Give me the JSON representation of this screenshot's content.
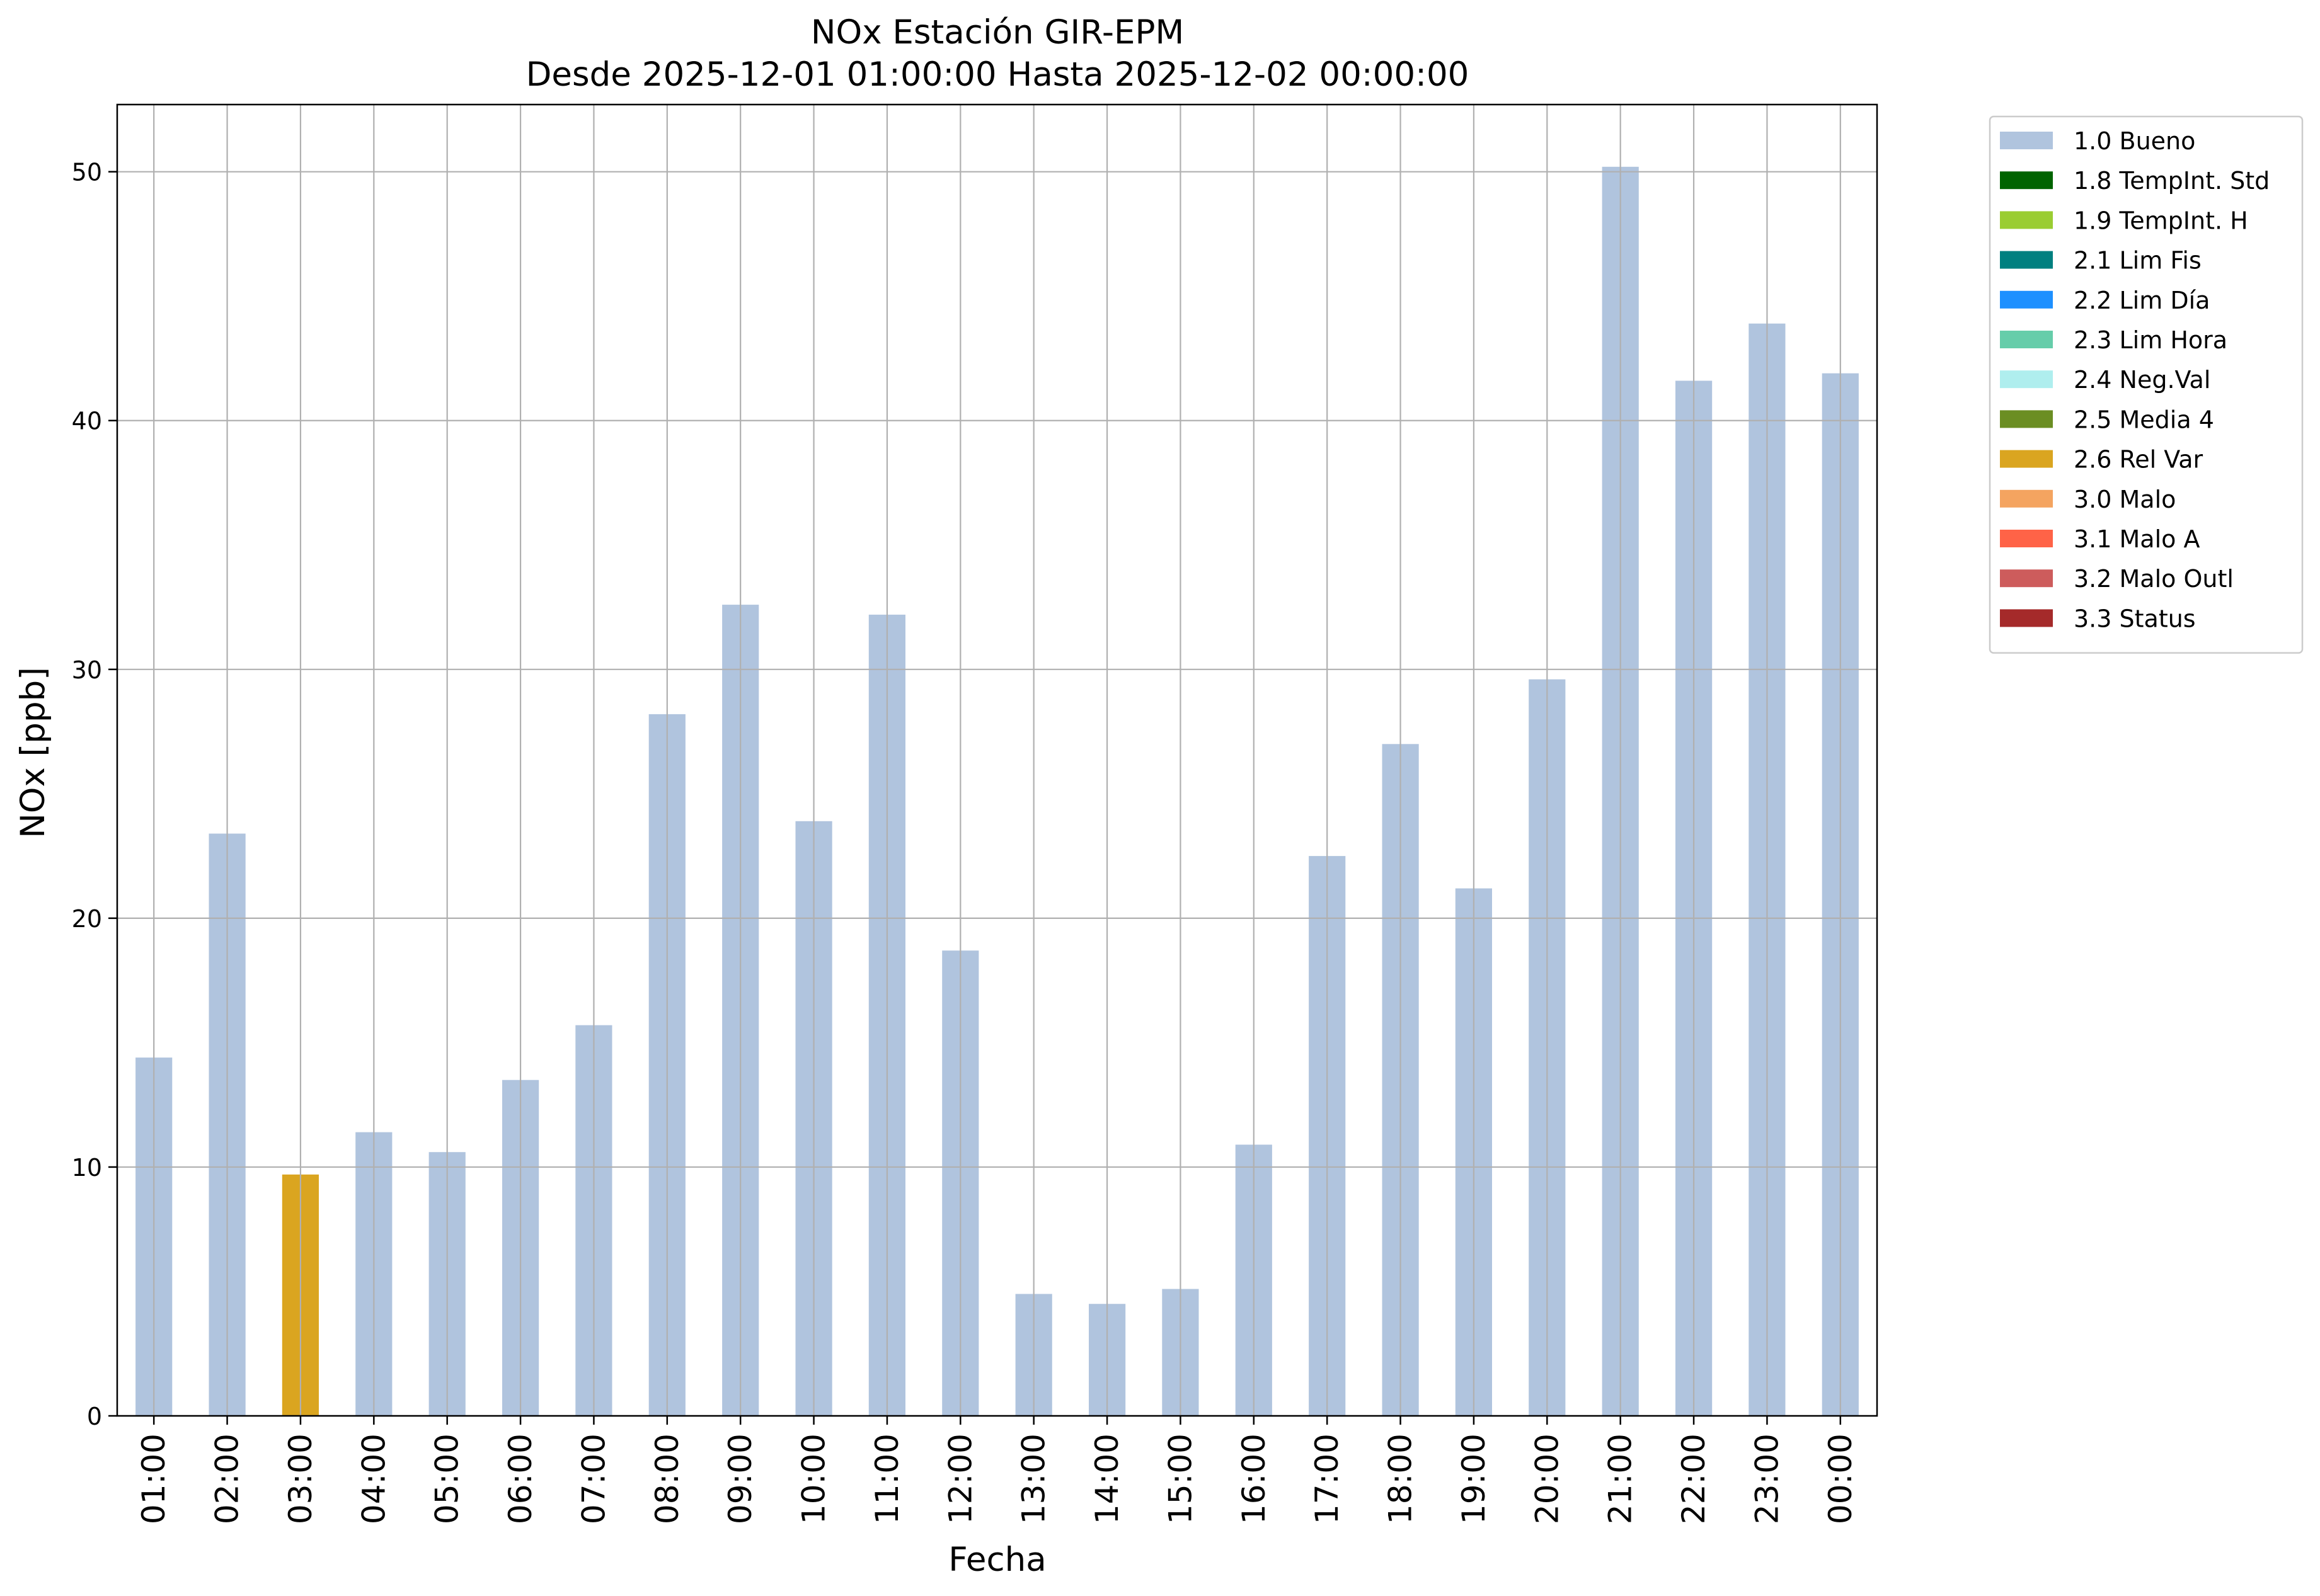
{
  "chart_data": {
    "type": "bar",
    "title": "NOx Estación GIR-EPM",
    "subtitle": "Desde 2025-12-01 01:00:00 Hasta 2025-12-02 00:00:00",
    "xlabel": "Fecha",
    "ylabel": "NOx [ppb]",
    "ylim": [
      0,
      52.7
    ],
    "yticks": [
      0,
      10,
      20,
      30,
      40,
      50
    ],
    "grid": true,
    "legend_position": "outside-top-right",
    "categories": [
      "01:00",
      "02:00",
      "03:00",
      "04:00",
      "05:00",
      "06:00",
      "07:00",
      "08:00",
      "09:00",
      "10:00",
      "11:00",
      "12:00",
      "13:00",
      "14:00",
      "15:00",
      "16:00",
      "17:00",
      "18:00",
      "19:00",
      "20:00",
      "21:00",
      "22:00",
      "23:00",
      "00:00"
    ],
    "values": [
      14.4,
      23.4,
      9.7,
      11.4,
      10.6,
      13.5,
      15.7,
      28.2,
      32.6,
      23.9,
      32.2,
      18.7,
      4.9,
      4.5,
      5.1,
      10.9,
      22.5,
      27.0,
      21.2,
      29.6,
      50.2,
      41.6,
      43.9,
      41.9
    ],
    "flags": [
      "1.0",
      "1.0",
      "2.6",
      "1.0",
      "1.0",
      "1.0",
      "1.0",
      "1.0",
      "1.0",
      "1.0",
      "1.0",
      "1.0",
      "1.0",
      "1.0",
      "1.0",
      "1.0",
      "1.0",
      "1.0",
      "1.0",
      "1.0",
      "1.0",
      "1.0",
      "1.0",
      "1.0"
    ],
    "legend": [
      {
        "code": "1.0",
        "label": "1.0 Bueno",
        "color": "#b0c4de"
      },
      {
        "code": "1.8",
        "label": "1.8 TempInt. Std",
        "color": "#006400"
      },
      {
        "code": "1.9",
        "label": "1.9 TempInt. H",
        "color": "#9acd32"
      },
      {
        "code": "2.1",
        "label": "2.1 Lim Fis",
        "color": "#008080"
      },
      {
        "code": "2.2",
        "label": "2.2 Lim Día",
        "color": "#1e90ff"
      },
      {
        "code": "2.3",
        "label": "2.3 Lim Hora",
        "color": "#66cdaa"
      },
      {
        "code": "2.4",
        "label": "2.4 Neg.Val",
        "color": "#afeeee"
      },
      {
        "code": "2.5",
        "label": "2.5 Media 4",
        "color": "#6b8e23"
      },
      {
        "code": "2.6",
        "label": "2.6 Rel Var",
        "color": "#daa520"
      },
      {
        "code": "3.0",
        "label": "3.0 Malo",
        "color": "#f4a460"
      },
      {
        "code": "3.1",
        "label": "3.1 Malo A",
        "color": "#ff6347"
      },
      {
        "code": "3.2",
        "label": "3.2 Malo Outl",
        "color": "#cd5c5c"
      },
      {
        "code": "3.3",
        "label": "3.3 Status",
        "color": "#a52a2a"
      }
    ]
  }
}
